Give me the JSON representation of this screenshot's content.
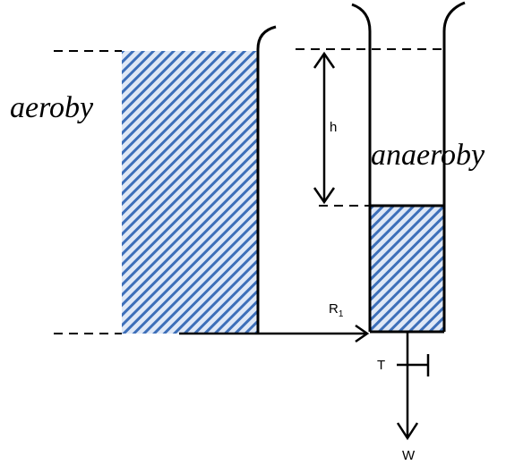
{
  "labels": {
    "aeroby": "aeroby",
    "anaeroby": "anaeroby",
    "h": "h",
    "r1_main": "R",
    "r1_sub": "1",
    "t": "T",
    "w": "W"
  },
  "colors": {
    "hatch_light": "#dfe8f6",
    "hatch_dark": "#3d6fb9",
    "stroke": "#000000"
  }
}
